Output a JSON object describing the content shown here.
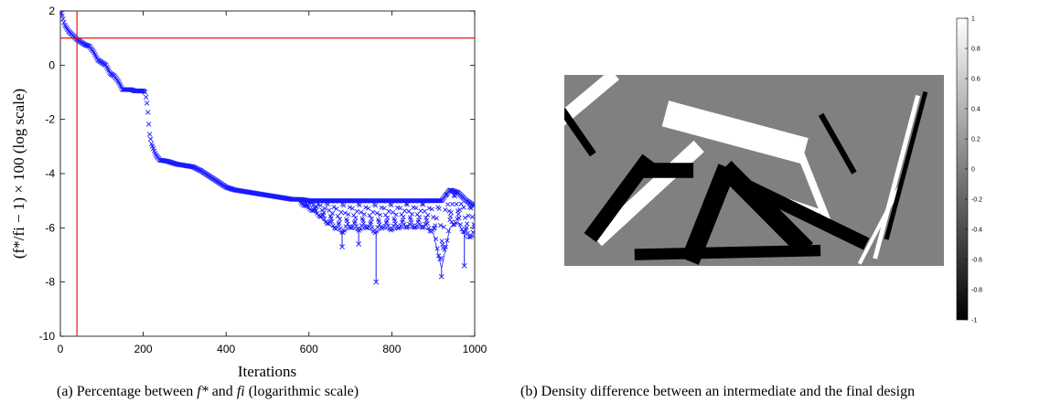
{
  "chart_data": [
    {
      "type": "scatter",
      "xlabel": "Iterations",
      "ylabel": "(f*/fi − 1) × 100 (log scale)",
      "xlim": [
        0,
        1000
      ],
      "ylim": [
        -10,
        2
      ],
      "xticks": [
        0,
        200,
        400,
        600,
        800,
        1000
      ],
      "yticks": [
        -10,
        -8,
        -6,
        -4,
        -2,
        0,
        2
      ],
      "marker": "x",
      "grid": false,
      "colors": {
        "series": "#1a1aff",
        "reference": "#e00000"
      },
      "reference_lines": {
        "horizontal_y": 1,
        "vertical_x": 40
      },
      "series": [
        {
          "x": [
            0,
            5,
            10,
            20,
            30,
            40,
            50,
            60,
            70,
            80,
            90,
            100,
            110,
            120,
            130,
            140,
            150,
            160,
            170,
            180,
            190,
            200,
            205,
            210,
            215,
            220,
            225,
            230,
            240,
            260,
            280,
            300,
            320,
            340,
            360,
            380,
            400,
            420,
            440,
            460,
            480,
            500,
            520,
            540,
            560,
            580,
            600,
            620,
            640,
            660,
            680,
            700,
            720,
            740,
            760,
            780,
            800,
            820,
            840,
            860,
            880,
            900,
            920,
            940,
            960,
            980,
            1000
          ],
          "y": [
            2.0,
            1.8,
            1.5,
            1.25,
            1.1,
            0.95,
            0.85,
            0.75,
            0.7,
            0.5,
            0.2,
            0.1,
            0.0,
            -0.3,
            -0.4,
            -0.6,
            -0.9,
            -0.9,
            -0.9,
            -0.95,
            -0.95,
            -0.95,
            -1.0,
            -1.5,
            -2.5,
            -2.9,
            -3.1,
            -3.3,
            -3.5,
            -3.55,
            -3.65,
            -3.7,
            -3.75,
            -3.9,
            -4.1,
            -4.3,
            -4.5,
            -4.6,
            -4.65,
            -4.7,
            -4.75,
            -4.8,
            -4.85,
            -4.9,
            -4.95,
            -4.95,
            -5.0,
            -5.0,
            -5.0,
            -5.0,
            -5.0,
            -5.0,
            -5.0,
            -5.0,
            -5.0,
            -5.0,
            -5.0,
            -5.0,
            -5.0,
            -5.0,
            -5.0,
            -5.0,
            -5.0,
            -4.6,
            -4.7,
            -5.0,
            -5.2
          ],
          "lower_envelope": {
            "x": [
              580,
              600,
              620,
              640,
              660,
              680,
              700,
              720,
              740,
              760,
              780,
              800,
              820,
              840,
              860,
              880,
              900,
              920,
              940,
              960,
              980,
              1000
            ],
            "y": [
              -5.1,
              -5.3,
              -5.5,
              -5.8,
              -6.0,
              -6.2,
              -6.0,
              -6.1,
              -6.0,
              -6.2,
              -6.0,
              -6.1,
              -6.0,
              -6.0,
              -6.0,
              -6.0,
              -6.2,
              -7.5,
              -6.0,
              -5.8,
              -6.4,
              -6.3
            ]
          },
          "spikes": [
            {
              "x": 680,
              "y": -6.7
            },
            {
              "x": 720,
              "y": -6.6
            },
            {
              "x": 762,
              "y": -8.0
            },
            {
              "x": 920,
              "y": -7.8
            },
            {
              "x": 975,
              "y": -7.4
            }
          ]
        }
      ]
    },
    {
      "type": "heatmap",
      "colorbar": {
        "range": [
          -1,
          1
        ],
        "ticks": [
          "1",
          "0.8",
          "0.6",
          "0.4",
          "0.2",
          "0",
          "-0.2",
          "-0.4",
          "-0.6",
          "-0.8",
          "-1"
        ]
      },
      "background_value": 0,
      "features": [
        {
          "value": 1,
          "from": [
            0.12,
            0.02
          ],
          "to": [
            0.0,
            0.22
          ],
          "width": 0.035
        },
        {
          "value": 1,
          "from": [
            0.3,
            0.22
          ],
          "to": [
            0.6,
            0.38
          ],
          "width": 0.07
        },
        {
          "value": 1,
          "from": [
            0.34,
            0.4
          ],
          "to": [
            0.1,
            0.84
          ],
          "width": 0.04
        },
        {
          "value": 1,
          "from": [
            0.48,
            0.6
          ],
          "to": [
            0.66,
            0.72
          ],
          "width": 0.025
        },
        {
          "value": 1,
          "from": [
            0.62,
            0.4
          ],
          "to": [
            0.7,
            0.8
          ],
          "width": 0.02
        },
        {
          "value": 1,
          "from": [
            0.93,
            0.12
          ],
          "to": [
            0.82,
            0.95
          ],
          "width": 0.012
        },
        {
          "value": 1,
          "from": [
            0.88,
            0.6
          ],
          "to": [
            0.78,
            0.98
          ],
          "width": 0.01
        },
        {
          "value": -1,
          "from": [
            0.0,
            0.2
          ],
          "to": [
            0.07,
            0.4
          ],
          "width": 0.02
        },
        {
          "value": -1,
          "from": [
            0.21,
            0.47
          ],
          "to": [
            0.08,
            0.82
          ],
          "width": 0.04
        },
        {
          "value": -1,
          "from": [
            0.21,
            0.5
          ],
          "to": [
            0.32,
            0.5
          ],
          "width": 0.04
        },
        {
          "value": -1,
          "from": [
            0.42,
            0.53
          ],
          "to": [
            0.34,
            0.93
          ],
          "width": 0.05
        },
        {
          "value": -1,
          "from": [
            0.44,
            0.52
          ],
          "to": [
            0.62,
            0.88
          ],
          "width": 0.05
        },
        {
          "value": -1,
          "from": [
            0.5,
            0.6
          ],
          "to": [
            0.78,
            0.87
          ],
          "width": 0.035
        },
        {
          "value": -1,
          "from": [
            0.2,
            0.94
          ],
          "to": [
            0.66,
            0.92
          ],
          "width": 0.03
        },
        {
          "value": -1,
          "from": [
            0.95,
            0.1
          ],
          "to": [
            0.85,
            0.85
          ],
          "width": 0.012
        },
        {
          "value": -1,
          "from": [
            0.68,
            0.22
          ],
          "to": [
            0.76,
            0.5
          ],
          "width": 0.015
        }
      ]
    }
  ],
  "captions": {
    "a": {
      "prefix": "(a) Percentage between ",
      "f_star": "f*",
      "middle": " and ",
      "f_i": "fi",
      "suffix": " (logarithmic scale)"
    },
    "b": {
      "text": "(b) Density difference between an intermediate and the final design"
    }
  }
}
